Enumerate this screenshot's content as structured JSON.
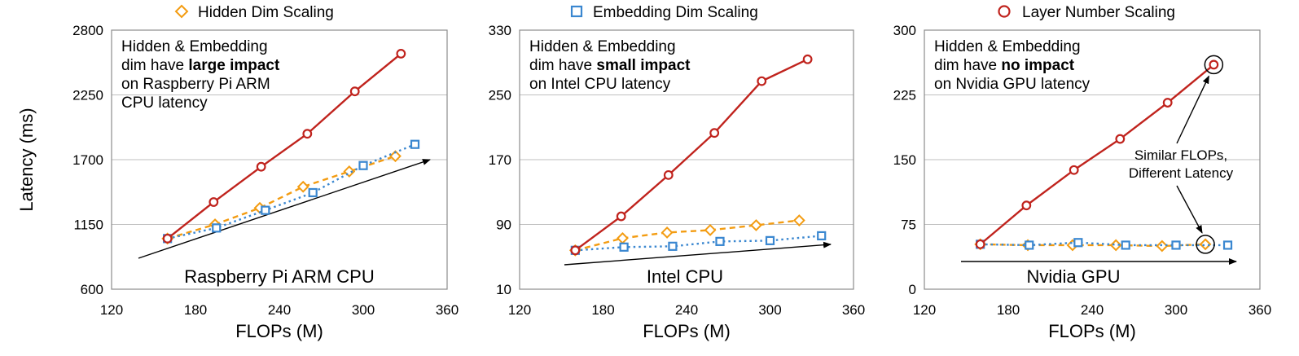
{
  "legend": {
    "hidden": "Hidden Dim Scaling",
    "embedding": "Embedding Dim Scaling",
    "layer": "Layer Number Scaling"
  },
  "colors": {
    "hidden": "#f39c12",
    "embedding": "#3a87d0",
    "layer": "#c0231d",
    "grid": "#bfbfbf",
    "arrow": "#000000"
  },
  "ylabel": "Latency (ms)",
  "chart_data": [
    {
      "type": "line",
      "xlabel": "FLOPs (M)",
      "ylabel": "Latency (ms)",
      "xlim": [
        120,
        360
      ],
      "xticks": [
        120,
        180,
        240,
        300,
        360
      ],
      "ylim": [
        600,
        2800
      ],
      "yticks": [
        600,
        1150,
        1700,
        2250,
        2800
      ],
      "grid": "horizontal",
      "annotation": [
        {
          "text": "Hidden & Embedding",
          "bold": false
        },
        {
          "text": "dim have ",
          "bold": false
        },
        {
          "text": "large impact",
          "bold": true
        },
        {
          "text": "on Raspberry Pi ARM",
          "bold": false
        },
        {
          "text": "CPU latency",
          "bold": false
        }
      ],
      "device_label": "Raspberry Pi ARM CPU",
      "series": [
        {
          "name": "Hidden Dim Scaling",
          "x": [
            160,
            194,
            226,
            257,
            290,
            323
          ],
          "y": [
            1030,
            1150,
            1290,
            1470,
            1600,
            1730
          ]
        },
        {
          "name": "Embedding Dim Scaling",
          "x": [
            160,
            195,
            230,
            264,
            300,
            337
          ],
          "y": [
            1030,
            1120,
            1270,
            1420,
            1650,
            1830
          ]
        },
        {
          "name": "Layer Number Scaling",
          "x": [
            160,
            193,
            227,
            260,
            294,
            327
          ],
          "y": [
            1030,
            1340,
            1640,
            1920,
            2280,
            2600
          ]
        }
      ]
    },
    {
      "type": "line",
      "xlabel": "FLOPs (M)",
      "ylabel": "",
      "xlim": [
        120,
        360
      ],
      "xticks": [
        120,
        180,
        240,
        300,
        360
      ],
      "ylim": [
        10,
        330
      ],
      "yticks": [
        10,
        90,
        170,
        250,
        330
      ],
      "grid": "horizontal",
      "annotation": [
        {
          "text": "Hidden & Embedding",
          "bold": false
        },
        {
          "text": "dim have ",
          "bold": false
        },
        {
          "text": "small impact",
          "bold": true
        },
        {
          "text": "on Intel CPU latency",
          "bold": false
        }
      ],
      "device_label": "Intel CPU",
      "series": [
        {
          "name": "Hidden Dim Scaling",
          "x": [
            160,
            194,
            226,
            257,
            290,
            321
          ],
          "y": [
            58,
            73,
            80,
            83,
            89,
            95
          ]
        },
        {
          "name": "Embedding Dim Scaling",
          "x": [
            160,
            195,
            230,
            264,
            300,
            337
          ],
          "y": [
            58,
            62,
            63,
            69,
            70,
            76
          ]
        },
        {
          "name": "Layer Number Scaling",
          "x": [
            160,
            193,
            227,
            260,
            294,
            327
          ],
          "y": [
            58,
            100,
            151,
            203,
            267,
            294
          ]
        }
      ]
    },
    {
      "type": "line",
      "xlabel": "FLOPs (M)",
      "ylabel": "",
      "xlim": [
        120,
        360
      ],
      "xticks": [
        120,
        180,
        240,
        300,
        360
      ],
      "ylim": [
        0,
        300
      ],
      "yticks": [
        0,
        75,
        150,
        225,
        300
      ],
      "grid": "horizontal",
      "annotation": [
        {
          "text": "Hidden & Embedding",
          "bold": false
        },
        {
          "text": "dim have ",
          "bold": false
        },
        {
          "text": "no impact",
          "bold": true
        },
        {
          "text": "on Nvidia GPU latency",
          "bold": false
        }
      ],
      "device_label": "Nvidia GPU",
      "note": [
        "Similar FLOPs,",
        "Different Latency"
      ],
      "series": [
        {
          "name": "Hidden Dim Scaling",
          "x": [
            160,
            194,
            226,
            257,
            290,
            321
          ],
          "y": [
            52,
            51,
            51,
            51,
            50,
            52
          ]
        },
        {
          "name": "Embedding Dim Scaling",
          "x": [
            160,
            195,
            230,
            264,
            300,
            337
          ],
          "y": [
            52,
            51,
            54,
            51,
            51,
            51
          ]
        },
        {
          "name": "Layer Number Scaling",
          "x": [
            160,
            193,
            227,
            260,
            294,
            327
          ],
          "y": [
            52,
            97,
            138,
            174,
            216,
            260
          ]
        }
      ]
    }
  ]
}
